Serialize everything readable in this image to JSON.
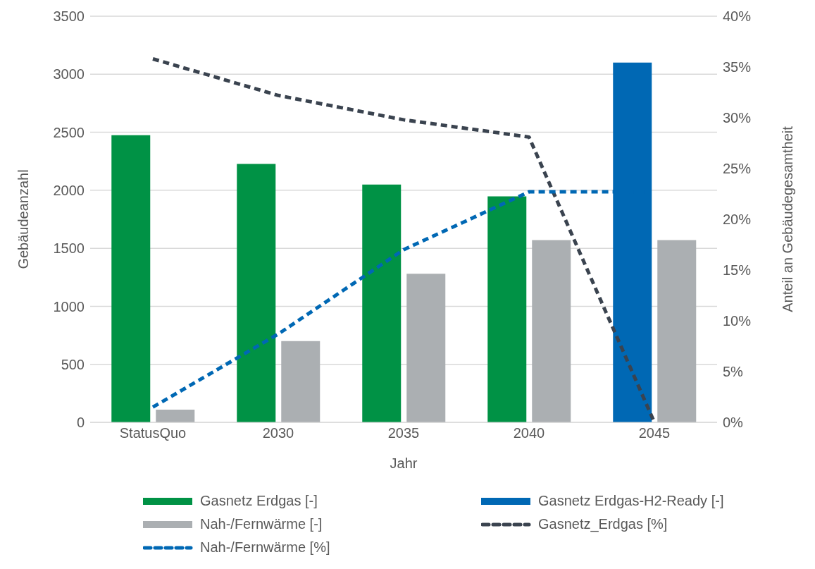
{
  "chart_data": {
    "type": "bar",
    "xlabel": "Jahr",
    "ylabel": "Gebäudeanzahl",
    "y2label": "Anteil an Gebäudegesamtheit",
    "categories": [
      "StatusQuo",
      "2030",
      "2035",
      "2040",
      "2045"
    ],
    "series": [
      {
        "name": "Gasnetz Erdgas [-]",
        "color": "#009245",
        "values": [
          2475,
          2227,
          2049,
          1947,
          null
        ]
      },
      {
        "name": "Gasnetz Erdgas-H2-Ready  [-]",
        "color": "#0068b4",
        "values": [
          null,
          null,
          null,
          null,
          3100
        ]
      },
      {
        "name": "Nah-/Fernwärme  [-]",
        "color": "#abafb2",
        "values": [
          110,
          700,
          1280,
          1570,
          1570
        ]
      },
      {
        "name": "Gasnetz_Erdgas [%]",
        "type": "line",
        "axis": "y2",
        "color": "#3a434f",
        "line_style": "dashed",
        "values": [
          35.8,
          32.2,
          29.8,
          28.1,
          0
        ]
      },
      {
        "name": "Nah-/Fernwärme [%]",
        "type": "line",
        "axis": "y2",
        "color": "#0068b4",
        "line_style": "dashed",
        "values": [
          1.5,
          8.7,
          17,
          22.7,
          22.7
        ]
      }
    ],
    "ylim": [
      0,
      3500
    ],
    "yticks": [
      0,
      500,
      1000,
      1500,
      2000,
      2500,
      3000,
      3500
    ],
    "y2lim": [
      0,
      40
    ],
    "y2ticks": [
      {
        "value": 0,
        "label": "0%"
      },
      {
        "value": 5,
        "label": "5%"
      },
      {
        "value": 10,
        "label": "10%"
      },
      {
        "value": 15,
        "label": "15%"
      },
      {
        "value": 20,
        "label": "20%"
      },
      {
        "value": 25,
        "label": "25%"
      },
      {
        "value": 30,
        "label": "30%"
      },
      {
        "value": 35,
        "label": "35%"
      },
      {
        "value": 40,
        "label": "40%"
      }
    ],
    "grid": "y",
    "legend": "bottom",
    "marker": "none"
  }
}
